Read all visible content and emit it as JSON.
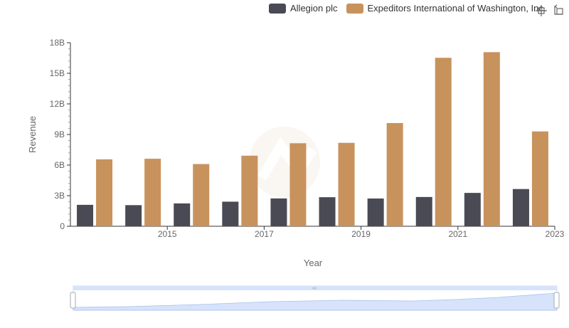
{
  "chart_data": {
    "type": "bar",
    "title": "",
    "xlabel": "Year",
    "ylabel": "Revenue",
    "x": [
      2014,
      2015,
      2016,
      2017,
      2018,
      2019,
      2020,
      2021,
      2022,
      2023
    ],
    "x_tick_labels": [
      "2015",
      "2017",
      "2019",
      "2021",
      "2023"
    ],
    "x_tick_values": [
      2015,
      2017,
      2019,
      2021,
      2023
    ],
    "ylim": [
      0,
      18
    ],
    "y_ticks": [
      0,
      3,
      6,
      9,
      12,
      15,
      18
    ],
    "y_tick_labels": [
      "0",
      "3B",
      "6B",
      "9B",
      "12B",
      "15B",
      "18B"
    ],
    "unit": "B",
    "grid": false,
    "legend_position": "top-right",
    "series": [
      {
        "name": "Allegion plc",
        "color": "#4a4a55",
        "values": [
          2.1,
          2.07,
          2.24,
          2.41,
          2.73,
          2.85,
          2.72,
          2.87,
          3.27,
          3.65
        ]
      },
      {
        "name": "Expeditors International of Washington, Inc.",
        "color": "#c8925d",
        "values": [
          6.56,
          6.62,
          6.1,
          6.92,
          8.14,
          8.18,
          10.12,
          16.52,
          17.07,
          9.3
        ]
      }
    ]
  },
  "toolbar": {
    "zoom_icon": "zoom-crosshair-icon",
    "restore_icon": "restore-icon"
  },
  "datazoom": {
    "handle_icon": "grip-icon",
    "fill_color": "#d6e3fb"
  }
}
